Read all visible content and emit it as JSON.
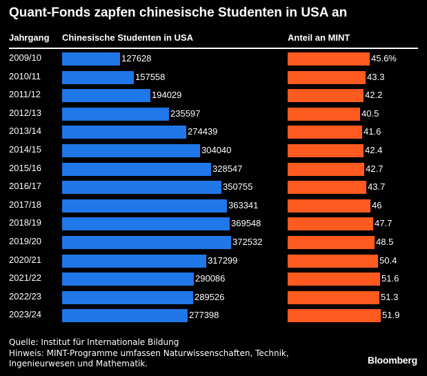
{
  "title": "Quant-Fonds zapfen chinesische Studenten in USA an",
  "headers": {
    "col1": "Jahrgang",
    "col2": "Chinesische Studenten in USA",
    "col3": "Anteil an MINT"
  },
  "colors": {
    "students_bar": "#1f77e8",
    "mint_bar": "#ff5a1f",
    "background": "#000000"
  },
  "chart_data": {
    "type": "bar",
    "orientation": "horizontal",
    "categories": [
      "2009/10",
      "2010/11",
      "2011/12",
      "2012/13",
      "2013/14",
      "2014/15",
      "2015/16",
      "2016/17",
      "2017/18",
      "2018/19",
      "2019/20",
      "2020/21",
      "2021/22",
      "2022/23",
      "2023/24"
    ],
    "series": [
      {
        "name": "Chinesische Studenten in USA",
        "values": [
          127628,
          157558,
          194029,
          235597,
          274439,
          304040,
          328547,
          350755,
          363341,
          369548,
          372532,
          317299,
          290086,
          289526,
          277398
        ],
        "labels": [
          "127628",
          "157558",
          "194029",
          "235597",
          "274439",
          "304040",
          "328547",
          "350755",
          "363341",
          "369548",
          "372532",
          "317299",
          "290086",
          "289526",
          "277398"
        ]
      },
      {
        "name": "Anteil an MINT",
        "values": [
          45.6,
          43.3,
          42.2,
          40.5,
          41.6,
          42.4,
          42.7,
          43.7,
          46,
          47.7,
          48.5,
          50.4,
          51.6,
          51.3,
          51.9
        ],
        "labels": [
          "45.6%",
          "43.3",
          "42.2",
          "40.5",
          "41.6",
          "42.4",
          "42.7",
          "43.7",
          "46",
          "47.7",
          "48.5",
          "50.4",
          "51.6",
          "51.3",
          "51.9"
        ]
      }
    ]
  },
  "footer": {
    "source": "Quelle: Institut für Internationale Bildung",
    "note_line1": "Hinweis: MINT-Programme umfassen Naturwissenschaften, Technik,",
    "note_line2": "Ingenieurwesen und Mathematik.",
    "brand": "Bloomberg"
  }
}
